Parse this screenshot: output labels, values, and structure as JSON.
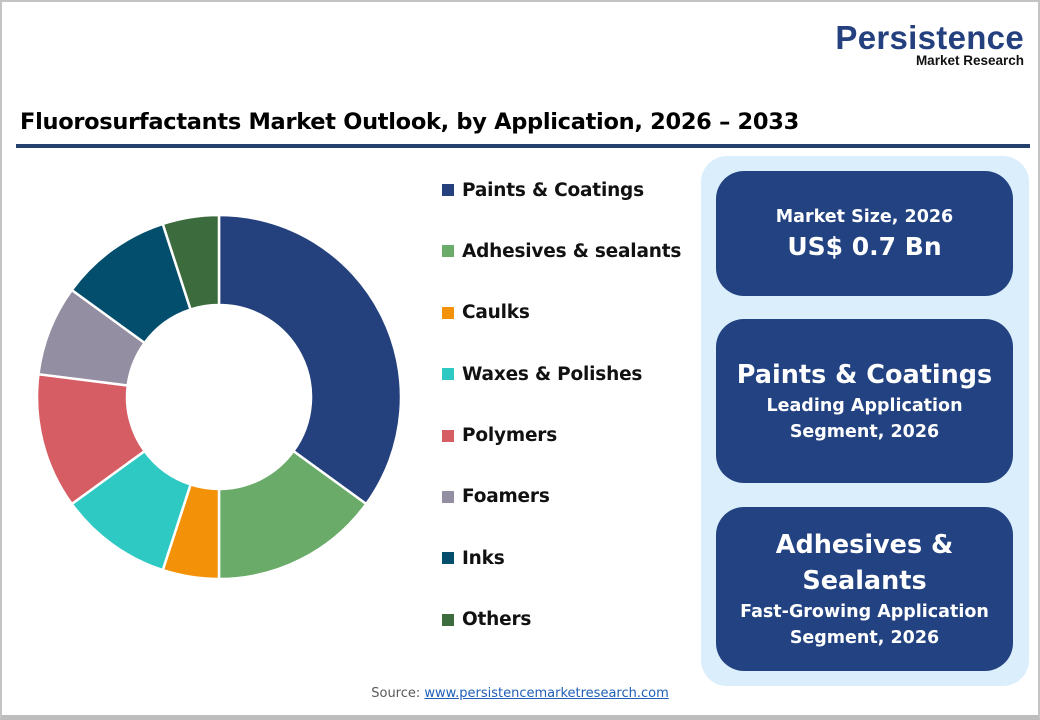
{
  "logo": {
    "main": "Persistence",
    "sub": "Market Research"
  },
  "title": "Fluorosurfactants Market Outlook, by Application, 2026 – 2033",
  "legend": [
    {
      "label": "Paints & Coatings",
      "color": "#24417d"
    },
    {
      "label": "Adhesives & sealants",
      "color": "#6aab6a"
    },
    {
      "label": "Caulks",
      "color": "#f39108"
    },
    {
      "label": "Waxes & Polishes",
      "color": "#2fc9c4"
    },
    {
      "label": "Polymers",
      "color": "#d65d63"
    },
    {
      "label": "Foamers",
      "color": "#948ea2"
    },
    {
      "label": "Inks",
      "color": "#034e6c"
    },
    {
      "label": "Others",
      "color": "#3c6c3d"
    }
  ],
  "cards": {
    "market_size": {
      "label": "Market Size, 2026",
      "value": "US$ 0.7 Bn"
    },
    "leading": {
      "title": "Paints & Coatings",
      "line1": "Leading Application",
      "line2": "Segment, 2026"
    },
    "fastest": {
      "title_line1": "Adhesives &",
      "title_line2": "Sealants",
      "line1": "Fast-Growing Application",
      "line2": "Segment, 2026"
    }
  },
  "source": {
    "prefix": "Source: ",
    "link": "www.persistencemarketresearch.com"
  },
  "chart_data": {
    "type": "pie",
    "subtype": "donut",
    "title": "Fluorosurfactants Market Outlook, by Application, 2026 – 2033",
    "categories": [
      "Paints & Coatings",
      "Adhesives & sealants",
      "Caulks",
      "Waxes & Polishes",
      "Polymers",
      "Foamers",
      "Inks",
      "Others"
    ],
    "values": [
      35,
      15,
      5,
      10,
      12,
      8,
      10,
      5
    ],
    "unit": "% share (estimated from slice angles)",
    "colors": [
      "#24417d",
      "#6aab6a",
      "#f39108",
      "#2fc9c4",
      "#d65d63",
      "#948ea2",
      "#034e6c",
      "#3c6c3d"
    ],
    "start_angle": "12 o'clock, clockwise",
    "legend_position": "right"
  }
}
